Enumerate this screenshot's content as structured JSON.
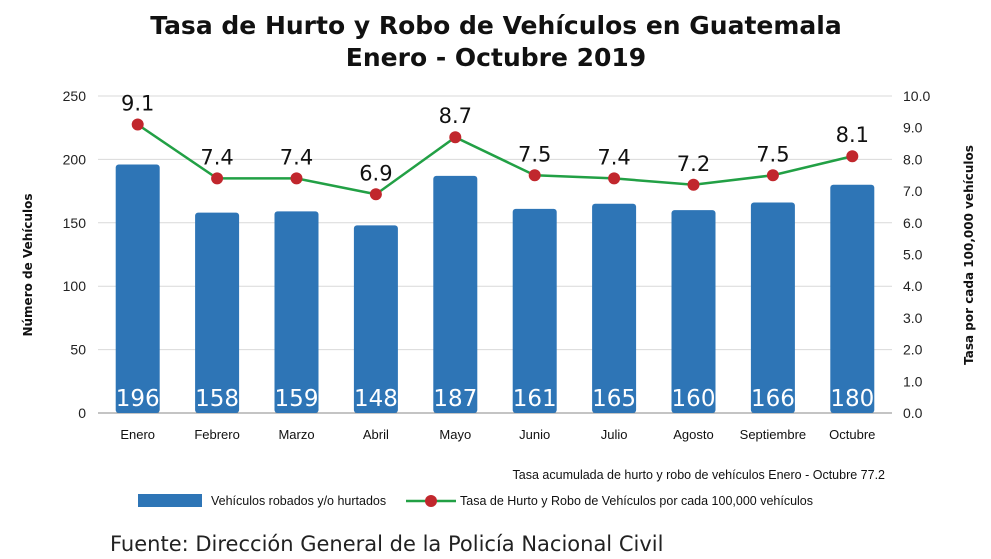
{
  "chart_data": {
    "type": "bar",
    "title": [
      "Tasa de Hurto y Robo de Vehículos en Guatemala",
      "Enero - Octubre 2019"
    ],
    "categories": [
      "Enero",
      "Febrero",
      "Marzo",
      "Abril",
      "Mayo",
      "Junio",
      "Julio",
      "Agosto",
      "Septiembre",
      "Octubre"
    ],
    "series": [
      {
        "name": "Vehículos robados y/o hurtados",
        "type": "bar",
        "axis": "left",
        "color": "#2E75B6",
        "values": [
          196,
          158,
          159,
          148,
          187,
          161,
          165,
          160,
          166,
          180
        ]
      },
      {
        "name": "Tasa de Hurto y Robo de Vehículos por cada 100,000 vehículos",
        "type": "line",
        "axis": "right",
        "color": "#22A045",
        "marker_color": "#C1272D",
        "values": [
          9.1,
          7.4,
          7.4,
          6.9,
          8.7,
          7.5,
          7.4,
          7.2,
          7.5,
          8.1
        ]
      }
    ],
    "ylabel": "Número de Vehículos",
    "ylim": [
      0,
      250
    ],
    "yticks": [
      0,
      50,
      100,
      150,
      200,
      250
    ],
    "y2label": "Tasa por cada 100,000 vehículos",
    "y2lim": [
      0,
      10
    ],
    "y2ticks": [
      "0.0",
      "1.0",
      "2.0",
      "3.0",
      "4.0",
      "5.0",
      "6.0",
      "7.0",
      "8.0",
      "9.0",
      "10.0"
    ],
    "grid": true,
    "legend_position": "bottom",
    "annotation": "Tasa acumulada de hurto y robo de vehículos Enero - Octubre 77.2",
    "source": "Fuente: Dirección General de la Policía Nacional Civil"
  }
}
